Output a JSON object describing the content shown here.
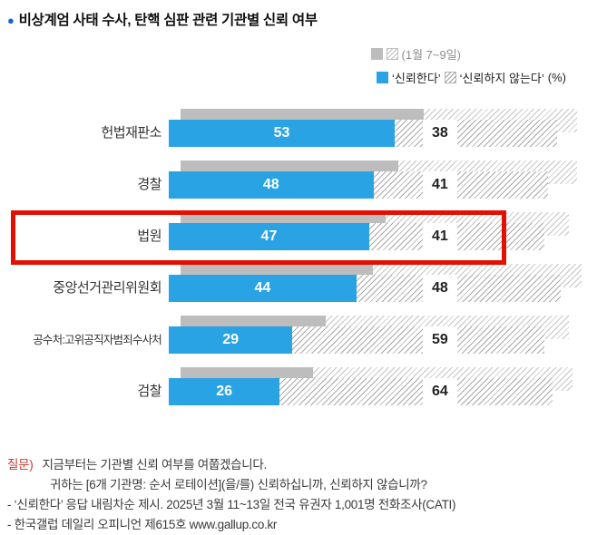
{
  "title": {
    "bullet": "●",
    "text": "비상계엄 사태 수사, 탄핵 심판 관련 기관별 신뢰 여부"
  },
  "legend": {
    "previous_label": "(1월 7~9일)",
    "trust_label": "‘신뢰한다’",
    "distrust_label": "‘신뢰하지 않는다’",
    "unit_label": "(%)"
  },
  "chart_data": {
    "type": "bar",
    "orientation": "horizontal",
    "unit": "%",
    "categories": [
      "헌법재판소",
      "경찰",
      "법원",
      "중앙선거관리위원회",
      "공수처:고위공직자범죄수사처",
      "검찰"
    ],
    "series": [
      {
        "name": "신뢰한다",
        "values": [
          53,
          48,
          47,
          44,
          29,
          26
        ],
        "color": "#29a3e3"
      },
      {
        "name": "신뢰하지 않는다",
        "values": [
          38,
          41,
          41,
          48,
          59,
          64
        ],
        "pattern": "diagonal-hatch"
      }
    ],
    "previous_survey": {
      "label": "1월 7~9일",
      "values_estimated": true,
      "series": [
        {
          "name": "신뢰한다",
          "values": [
            57,
            51,
            48,
            45,
            34,
            31
          ],
          "color": "#bdbdbd"
        },
        {
          "name": "신뢰하지 않는다",
          "values": [
            36,
            42,
            43,
            49,
            57,
            61
          ],
          "pattern": "diagonal-hatch-gray"
        }
      ]
    },
    "highlighted_category": "법원",
    "highlight_color": "#e30f00",
    "xlim": [
      0,
      100
    ],
    "grid": false,
    "legend_position": "top-right"
  },
  "footnote": {
    "question_label": "질문)",
    "question_line1": "지금부터는 기관별 신뢰 여부를 여쭙겠습니다.",
    "question_line2": "귀하는 [6개 기관명: 순서 로테이션](을/를) 신뢰하십니까, 신뢰하지 않습니까?",
    "note1": "- ‘신뢰한다’ 응답 내림차순 제시. 2025년 3월 11~13일 전국 유권자 1,001명 전화조사(CATI)",
    "note2": "- 한국갤럽 데일리 오피니언 제615호 www.gallup.co.kr"
  }
}
